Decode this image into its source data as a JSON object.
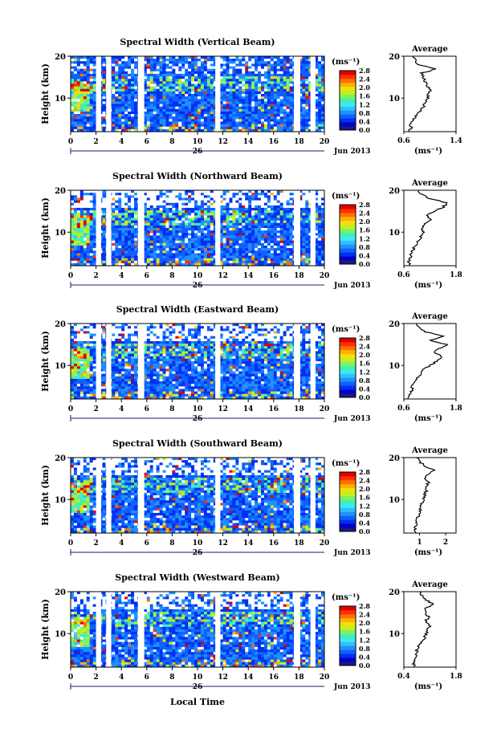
{
  "figure": {
    "xlabel": "Local Time",
    "date_label": "Jun 2013",
    "day_label": "26",
    "ylabel": "Height (km)",
    "unit_label": "(ms⁻¹)",
    "avg_unit_label": "(ms⁻¹)",
    "avg_title": "Average"
  },
  "colors": {
    "scale": [
      "#1a1a80",
      "#0000c8",
      "#0030f0",
      "#1060ff",
      "#2090ff",
      "#30c0ff",
      "#40e8f0",
      "#40f0b0",
      "#80f060",
      "#c0f020",
      "#f0e010",
      "#ffb000",
      "#ff7000",
      "#ff3000",
      "#e00000"
    ],
    "background": "#1040e0",
    "gap": "#ffffff"
  },
  "chart_data": [
    {
      "type": "heatmap",
      "title": "Spectral Width (Vertical Beam)",
      "xlim": [
        0,
        20
      ],
      "ylim": [
        2,
        20
      ],
      "xticks": [
        "0",
        "2",
        "4",
        "6",
        "8",
        "10",
        "12",
        "14",
        "16",
        "18",
        "20"
      ],
      "yticks": [
        "10",
        "20"
      ],
      "colorbar_ticks": [
        "0.0",
        "0.4",
        "0.8",
        "1.2",
        "1.6",
        "2.0",
        "2.4",
        "2.8"
      ],
      "colorbar_range": [
        0,
        2.8
      ],
      "gaps_hours": [
        [
          2.0,
          2.4
        ],
        [
          2.8,
          3.2
        ],
        [
          5.3,
          5.8
        ],
        [
          11.4,
          11.8
        ],
        [
          17.6,
          18.1
        ],
        [
          18.9,
          19.3
        ]
      ],
      "average": {
        "xlim": [
          0.6,
          1.4
        ],
        "xticks": [
          "0.6",
          "1.4"
        ],
        "ylim": [
          2,
          20
        ],
        "yticks": [
          "10",
          "20"
        ],
        "height": [
          2,
          3,
          4,
          5,
          6,
          7,
          8,
          9,
          10,
          11,
          12,
          13,
          14,
          15,
          16,
          17,
          18,
          19,
          20
        ],
        "value": [
          0.68,
          0.72,
          0.7,
          0.74,
          0.8,
          0.85,
          0.9,
          0.93,
          0.96,
          0.98,
          1.0,
          0.95,
          0.92,
          0.9,
          0.88,
          1.1,
          0.82,
          0.78,
          0.75
        ]
      }
    },
    {
      "type": "heatmap",
      "title": "Spectral Width (Northward Beam)",
      "xlim": [
        0,
        20
      ],
      "ylim": [
        2,
        20
      ],
      "xticks": [
        "0",
        "2",
        "4",
        "6",
        "8",
        "10",
        "12",
        "14",
        "16",
        "18",
        "20"
      ],
      "yticks": [
        "10",
        "20"
      ],
      "colorbar_ticks": [
        "0.0",
        "0.4",
        "0.8",
        "1.2",
        "1.6",
        "2.0",
        "2.4",
        "2.8"
      ],
      "colorbar_range": [
        0,
        2.8
      ],
      "gaps_hours": [
        [
          2.0,
          2.4
        ],
        [
          2.8,
          3.2
        ],
        [
          5.3,
          5.8
        ],
        [
          11.4,
          11.8
        ],
        [
          17.6,
          18.1
        ],
        [
          18.9,
          19.3
        ]
      ],
      "average": {
        "xlim": [
          0.6,
          1.8
        ],
        "xticks": [
          "0.6",
          "1.8"
        ],
        "ylim": [
          2,
          20
        ],
        "yticks": [
          "10",
          "20"
        ],
        "height": [
          2,
          3,
          4,
          5,
          6,
          7,
          8,
          9,
          10,
          11,
          12,
          13,
          14,
          15,
          16,
          17,
          18,
          19,
          20
        ],
        "value": [
          0.75,
          0.72,
          0.74,
          0.78,
          0.82,
          0.88,
          0.95,
          1.0,
          1.05,
          1.0,
          1.1,
          1.2,
          1.15,
          1.3,
          1.5,
          1.6,
          1.2,
          1.0,
          0.9
        ]
      }
    },
    {
      "type": "heatmap",
      "title": "Spectral Width (Eastward Beam)",
      "xlim": [
        0,
        20
      ],
      "ylim": [
        2,
        20
      ],
      "xticks": [
        "0",
        "2",
        "4",
        "6",
        "8",
        "10",
        "12",
        "14",
        "16",
        "18",
        "20"
      ],
      "yticks": [
        "10",
        "20"
      ],
      "colorbar_ticks": [
        "0.0",
        "0.4",
        "0.8",
        "1.2",
        "1.6",
        "2.0",
        "2.4",
        "2.8"
      ],
      "colorbar_range": [
        0,
        2.8
      ],
      "gaps_hours": [
        [
          2.0,
          2.4
        ],
        [
          2.8,
          3.2
        ],
        [
          5.3,
          5.8
        ],
        [
          11.4,
          11.8
        ],
        [
          17.6,
          18.1
        ],
        [
          18.9,
          19.3
        ]
      ],
      "average": {
        "xlim": [
          0.6,
          1.8
        ],
        "xticks": [
          "0.6",
          "1.8"
        ],
        "ylim": [
          2,
          20
        ],
        "yticks": [
          "10",
          "20"
        ],
        "height": [
          2,
          3,
          4,
          5,
          6,
          7,
          8,
          9,
          10,
          11,
          12,
          13,
          14,
          15,
          16,
          17,
          18,
          19,
          20
        ],
        "value": [
          0.72,
          0.75,
          0.78,
          0.8,
          0.85,
          0.9,
          0.98,
          1.05,
          1.2,
          1.35,
          1.5,
          1.3,
          1.4,
          1.6,
          1.2,
          1.5,
          1.1,
          0.95,
          0.9
        ]
      }
    },
    {
      "type": "heatmap",
      "title": "Spectral Width (Southward Beam)",
      "xlim": [
        0,
        20
      ],
      "ylim": [
        2,
        20
      ],
      "xticks": [
        "0",
        "2",
        "4",
        "6",
        "8",
        "10",
        "12",
        "14",
        "16",
        "18",
        "20"
      ],
      "yticks": [
        "10",
        "20"
      ],
      "colorbar_ticks": [
        "0.0",
        "0.4",
        "0.8",
        "1.2",
        "1.6",
        "2.0",
        "2.4",
        "2.8"
      ],
      "colorbar_range": [
        0,
        2.8
      ],
      "gaps_hours": [
        [
          2.0,
          2.4
        ],
        [
          2.8,
          3.2
        ],
        [
          5.3,
          5.8
        ],
        [
          11.4,
          11.8
        ],
        [
          17.6,
          18.1
        ],
        [
          18.9,
          19.3
        ]
      ],
      "average": {
        "xlim": [
          0.4,
          2.4
        ],
        "xticks": [
          "1",
          "2"
        ],
        "ylim": [
          2,
          20
        ],
        "yticks": [
          "10",
          "20"
        ],
        "height": [
          2,
          3,
          4,
          5,
          6,
          7,
          8,
          9,
          10,
          11,
          12,
          13,
          14,
          15,
          16,
          17,
          18,
          19,
          20
        ],
        "value": [
          0.85,
          0.82,
          0.86,
          0.9,
          0.95,
          1.0,
          1.05,
          1.1,
          1.15,
          1.2,
          1.25,
          1.2,
          1.35,
          1.25,
          1.3,
          1.6,
          1.2,
          1.0,
          0.9
        ]
      }
    },
    {
      "type": "heatmap",
      "title": "Spectral Width (Westward Beam)",
      "xlim": [
        0,
        20
      ],
      "ylim": [
        2,
        20
      ],
      "xticks": [
        "0",
        "2",
        "4",
        "6",
        "8",
        "10",
        "12",
        "14",
        "16",
        "18",
        "20"
      ],
      "yticks": [
        "10",
        "20"
      ],
      "colorbar_ticks": [
        "0.0",
        "0.4",
        "0.8",
        "1.2",
        "1.6",
        "2.0",
        "2.4",
        "2.8"
      ],
      "colorbar_range": [
        0,
        2.8
      ],
      "gaps_hours": [
        [
          2.0,
          2.4
        ],
        [
          2.8,
          3.2
        ],
        [
          5.3,
          5.8
        ],
        [
          11.4,
          11.8
        ],
        [
          17.6,
          18.1
        ],
        [
          18.9,
          19.3
        ]
      ],
      "average": {
        "xlim": [
          0.4,
          1.8
        ],
        "xticks": [
          "0.4",
          "1.8"
        ],
        "ylim": [
          2,
          20
        ],
        "yticks": [
          "10",
          "20"
        ],
        "height": [
          2,
          3,
          4,
          5,
          6,
          7,
          8,
          9,
          10,
          11,
          12,
          13,
          14,
          15,
          16,
          17,
          18,
          19,
          20
        ],
        "value": [
          0.65,
          0.68,
          0.7,
          0.72,
          0.75,
          0.8,
          0.88,
          0.95,
          1.0,
          1.05,
          1.1,
          1.0,
          1.05,
          1.0,
          1.0,
          1.2,
          1.0,
          0.9,
          0.8
        ]
      }
    }
  ]
}
